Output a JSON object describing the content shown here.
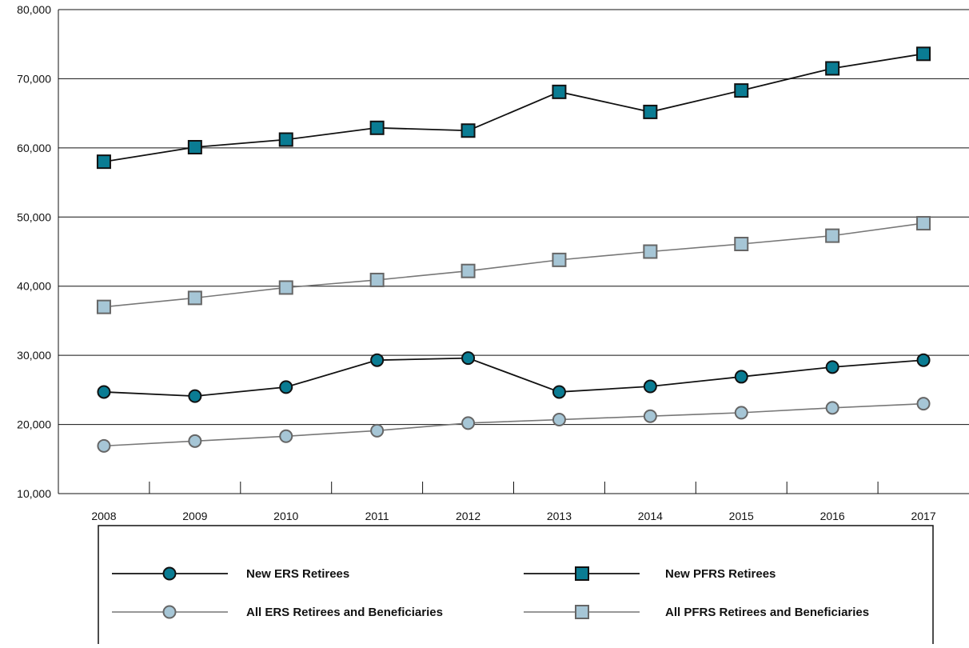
{
  "chart_data": {
    "type": "line",
    "title": "",
    "xlabel": "",
    "ylabel": "",
    "categories": [
      "2008",
      "2009",
      "2010",
      "2011",
      "2012",
      "2013",
      "2014",
      "2015",
      "2016",
      "2017"
    ],
    "ylim": [
      10000,
      80000
    ],
    "y_ticks": [
      "10,000",
      "20,000",
      "30,000",
      "40,000",
      "50,000",
      "60,000",
      "70,000",
      "80,000"
    ],
    "grid": "horizontal",
    "legend_position": "bottom",
    "series": [
      {
        "name": "New ERS Retirees",
        "marker": "circle",
        "color": "#0a7c93",
        "line_color": "#111111",
        "values": [
          24700,
          24100,
          25400,
          29300,
          29600,
          24700,
          25500,
          26900,
          28300,
          29300
        ]
      },
      {
        "name": "New PFRS Retirees",
        "marker": "square",
        "color": "#0a7c93",
        "line_color": "#111111",
        "values": [
          58000,
          60100,
          61200,
          62900,
          62500,
          68100,
          65200,
          68300,
          71500,
          73600
        ]
      },
      {
        "name": "All ERS Retirees and Beneficiaries",
        "marker": "circle",
        "color": "#a6c6d6",
        "line_color": "#777777",
        "values": [
          16900,
          17600,
          18300,
          19100,
          20200,
          20700,
          21200,
          21700,
          22400,
          23000
        ]
      },
      {
        "name": "All PFRS Retirees and Beneficiaries",
        "marker": "square",
        "color": "#a6c6d6",
        "line_color": "#777777",
        "values": [
          37000,
          38300,
          39800,
          40900,
          42200,
          43800,
          45000,
          46100,
          47300,
          49100
        ]
      }
    ]
  }
}
